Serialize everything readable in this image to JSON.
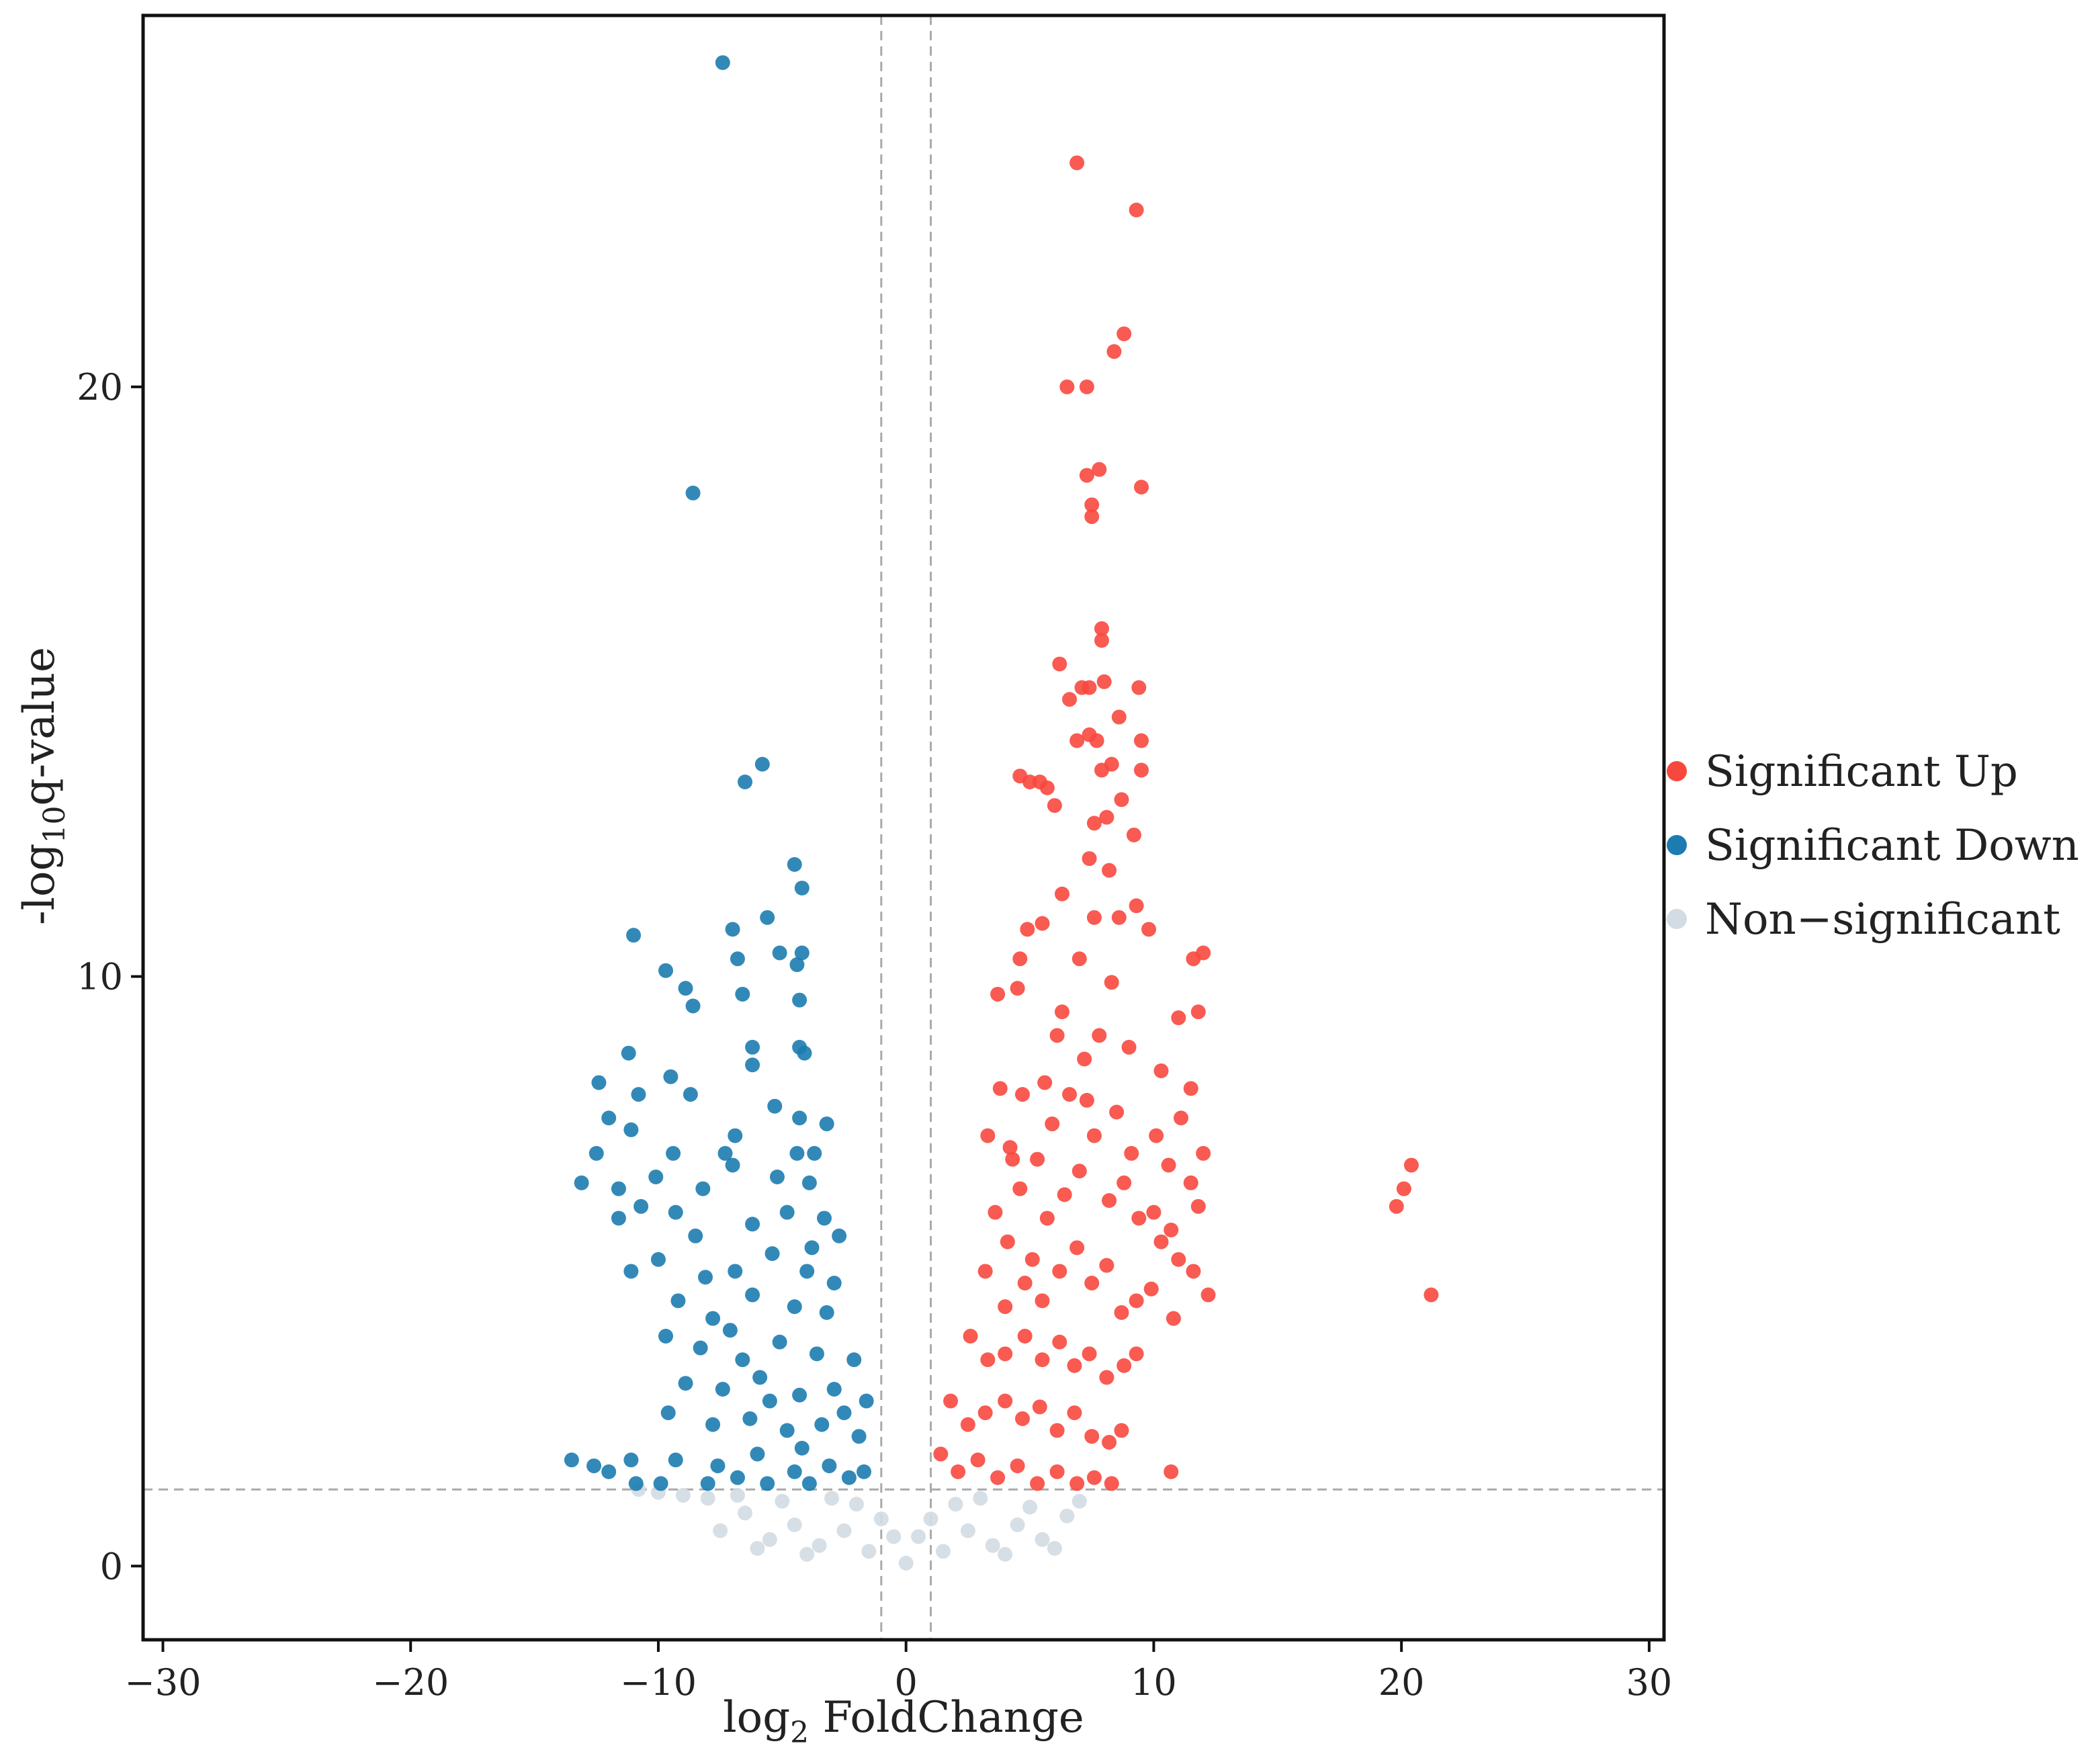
{
  "chart_data": {
    "type": "scatter",
    "title": "",
    "xlabel_main": "log",
    "xlabel_sub": "2",
    "xlabel_tail": " FoldChange",
    "ylabel_main": "-log",
    "ylabel_sub": "10",
    "ylabel_tail": "q-value",
    "xlim": [
      -30.8,
      30.6
    ],
    "ylim": [
      -1.25,
      26.3
    ],
    "x_ticks": [
      -30,
      -20,
      -10,
      0,
      10,
      20,
      30
    ],
    "x_tick_labels": [
      "−30",
      "−20",
      "−10",
      "0",
      "10",
      "20",
      "30"
    ],
    "y_ticks": [
      0,
      10,
      20
    ],
    "y_tick_labels": [
      "0",
      "10",
      "20"
    ],
    "thresholds": {
      "x": [
        -1,
        1
      ],
      "y": 1.3
    },
    "grid": false,
    "legend_position": "right",
    "series": [
      {
        "name": "Significant Up",
        "color": "#f8483e",
        "points": [
          [
            6.9,
            23.8
          ],
          [
            9.3,
            23.0
          ],
          [
            8.8,
            20.9
          ],
          [
            8.4,
            20.6
          ],
          [
            6.5,
            20.0
          ],
          [
            7.3,
            20.0
          ],
          [
            7.3,
            18.5
          ],
          [
            7.8,
            18.6
          ],
          [
            9.5,
            18.3
          ],
          [
            7.5,
            18.0
          ],
          [
            7.5,
            17.8
          ],
          [
            7.9,
            15.9
          ],
          [
            7.9,
            15.7
          ],
          [
            6.2,
            15.3
          ],
          [
            7.1,
            14.9
          ],
          [
            7.4,
            14.9
          ],
          [
            8.0,
            15.0
          ],
          [
            9.4,
            14.9
          ],
          [
            6.6,
            14.7
          ],
          [
            8.6,
            14.4
          ],
          [
            7.4,
            14.1
          ],
          [
            6.9,
            14.0
          ],
          [
            7.7,
            14.0
          ],
          [
            9.5,
            14.0
          ],
          [
            8.3,
            13.6
          ],
          [
            9.5,
            13.5
          ],
          [
            4.6,
            13.4
          ],
          [
            5.0,
            13.3
          ],
          [
            5.4,
            13.3
          ],
          [
            5.7,
            13.2
          ],
          [
            7.9,
            13.5
          ],
          [
            6.0,
            12.9
          ],
          [
            8.7,
            13.0
          ],
          [
            7.6,
            12.6
          ],
          [
            8.1,
            12.7
          ],
          [
            9.2,
            12.4
          ],
          [
            7.4,
            12.0
          ],
          [
            8.2,
            11.8
          ],
          [
            6.3,
            11.4
          ],
          [
            9.3,
            11.2
          ],
          [
            7.6,
            11.0
          ],
          [
            8.6,
            11.0
          ],
          [
            4.9,
            10.8
          ],
          [
            5.5,
            10.9
          ],
          [
            9.8,
            10.8
          ],
          [
            4.6,
            10.3
          ],
          [
            11.6,
            10.3
          ],
          [
            12.0,
            10.4
          ],
          [
            3.7,
            9.7
          ],
          [
            4.5,
            9.8
          ],
          [
            6.3,
            9.4
          ],
          [
            11.0,
            9.3
          ],
          [
            11.8,
            9.4
          ],
          [
            3.8,
            8.1
          ],
          [
            4.7,
            8.0
          ],
          [
            10.3,
            8.4
          ],
          [
            11.5,
            8.1
          ],
          [
            3.3,
            7.3
          ],
          [
            4.2,
            7.1
          ],
          [
            12.0,
            7.0
          ],
          [
            11.5,
            6.5
          ],
          [
            11.8,
            6.1
          ],
          [
            10.7,
            5.7
          ],
          [
            11.0,
            5.2
          ],
          [
            11.6,
            5.0
          ],
          [
            12.2,
            4.6
          ],
          [
            10.8,
            4.2
          ],
          [
            10.7,
            1.6
          ],
          [
            20.4,
            6.8
          ],
          [
            20.1,
            6.4
          ],
          [
            19.8,
            6.1
          ],
          [
            21.2,
            4.6
          ],
          [
            3.6,
            6.0
          ],
          [
            4.1,
            5.5
          ],
          [
            4.6,
            6.4
          ],
          [
            5.3,
            6.9
          ],
          [
            5.9,
            7.5
          ],
          [
            6.6,
            8.0
          ],
          [
            7.2,
            8.6
          ],
          [
            7.8,
            9.0
          ],
          [
            8.5,
            7.7
          ],
          [
            9.1,
            7.0
          ],
          [
            5.1,
            5.2
          ],
          [
            5.7,
            5.9
          ],
          [
            6.4,
            6.3
          ],
          [
            7.0,
            6.7
          ],
          [
            7.6,
            7.3
          ],
          [
            8.2,
            6.2
          ],
          [
            8.8,
            6.5
          ],
          [
            9.4,
            5.9
          ],
          [
            10.0,
            6.0
          ],
          [
            10.3,
            5.5
          ],
          [
            3.2,
            5.0
          ],
          [
            4.0,
            4.4
          ],
          [
            4.8,
            4.8
          ],
          [
            5.5,
            4.5
          ],
          [
            6.2,
            5.0
          ],
          [
            6.9,
            5.4
          ],
          [
            7.5,
            4.8
          ],
          [
            8.1,
            5.1
          ],
          [
            8.7,
            4.3
          ],
          [
            9.3,
            4.5
          ],
          [
            9.9,
            4.7
          ],
          [
            2.6,
            3.9
          ],
          [
            3.3,
            3.5
          ],
          [
            4.0,
            3.6
          ],
          [
            4.8,
            3.9
          ],
          [
            5.5,
            3.5
          ],
          [
            6.2,
            3.8
          ],
          [
            6.8,
            3.4
          ],
          [
            7.4,
            3.6
          ],
          [
            8.1,
            3.2
          ],
          [
            8.8,
            3.4
          ],
          [
            9.3,
            3.6
          ],
          [
            1.8,
            2.8
          ],
          [
            2.5,
            2.4
          ],
          [
            3.2,
            2.6
          ],
          [
            4.0,
            2.8
          ],
          [
            4.7,
            2.5
          ],
          [
            5.4,
            2.7
          ],
          [
            6.1,
            2.3
          ],
          [
            6.8,
            2.6
          ],
          [
            7.5,
            2.2
          ],
          [
            8.2,
            2.1
          ],
          [
            8.7,
            2.3
          ],
          [
            1.4,
            1.9
          ],
          [
            2.1,
            1.6
          ],
          [
            2.9,
            1.8
          ],
          [
            3.7,
            1.5
          ],
          [
            4.5,
            1.7
          ],
          [
            5.3,
            1.4
          ],
          [
            6.1,
            1.6
          ],
          [
            6.9,
            1.4
          ],
          [
            7.6,
            1.5
          ],
          [
            8.3,
            1.4
          ],
          [
            7.0,
            10.3
          ],
          [
            8.3,
            9.9
          ],
          [
            6.1,
            9.0
          ],
          [
            9.0,
            8.8
          ],
          [
            5.6,
            8.2
          ],
          [
            7.3,
            7.9
          ],
          [
            4.3,
            6.9
          ],
          [
            10.1,
            7.3
          ],
          [
            11.1,
            7.6
          ],
          [
            10.6,
            6.8
          ]
        ]
      },
      {
        "name": "Significant Down",
        "color": "#1c7cb0",
        "points": [
          [
            -7.4,
            25.5
          ],
          [
            -8.6,
            18.2
          ],
          [
            -6.5,
            13.3
          ],
          [
            -5.8,
            13.6
          ],
          [
            -4.5,
            11.9
          ],
          [
            -4.2,
            11.5
          ],
          [
            -5.6,
            11.0
          ],
          [
            -7.0,
            10.8
          ],
          [
            -11.0,
            10.7
          ],
          [
            -6.8,
            10.3
          ],
          [
            -5.1,
            10.4
          ],
          [
            -4.4,
            10.2
          ],
          [
            -4.2,
            10.4
          ],
          [
            -9.7,
            10.1
          ],
          [
            -8.9,
            9.8
          ],
          [
            -6.6,
            9.7
          ],
          [
            -8.6,
            9.5
          ],
          [
            -4.3,
            9.6
          ],
          [
            -11.2,
            8.7
          ],
          [
            -6.2,
            8.8
          ],
          [
            -4.3,
            8.8
          ],
          [
            -4.1,
            8.7
          ],
          [
            -12.4,
            8.2
          ],
          [
            -10.8,
            8.0
          ],
          [
            -9.5,
            8.3
          ],
          [
            -8.7,
            8.0
          ],
          [
            -6.2,
            8.5
          ],
          [
            -5.3,
            7.8
          ],
          [
            -12.0,
            7.6
          ],
          [
            -11.1,
            7.4
          ],
          [
            -6.9,
            7.3
          ],
          [
            -4.3,
            7.6
          ],
          [
            -3.2,
            7.5
          ],
          [
            -12.5,
            7.0
          ],
          [
            -9.4,
            7.0
          ],
          [
            -7.3,
            7.0
          ],
          [
            -4.4,
            7.0
          ],
          [
            -3.7,
            7.0
          ],
          [
            -13.1,
            6.5
          ],
          [
            -11.6,
            6.4
          ],
          [
            -10.1,
            6.6
          ],
          [
            -8.2,
            6.4
          ],
          [
            -7.0,
            6.8
          ],
          [
            -5.2,
            6.6
          ],
          [
            -3.9,
            6.5
          ],
          [
            -11.6,
            5.9
          ],
          [
            -10.7,
            6.1
          ],
          [
            -9.3,
            6.0
          ],
          [
            -8.5,
            5.6
          ],
          [
            -6.2,
            5.8
          ],
          [
            -4.8,
            6.0
          ],
          [
            -3.3,
            5.9
          ],
          [
            -11.1,
            5.0
          ],
          [
            -10.0,
            5.2
          ],
          [
            -8.1,
            4.9
          ],
          [
            -6.9,
            5.0
          ],
          [
            -5.4,
            5.3
          ],
          [
            -3.8,
            5.4
          ],
          [
            -2.7,
            5.6
          ],
          [
            -9.2,
            4.5
          ],
          [
            -7.8,
            4.2
          ],
          [
            -6.2,
            4.6
          ],
          [
            -4.5,
            4.4
          ],
          [
            -3.2,
            4.3
          ],
          [
            -9.7,
            3.9
          ],
          [
            -8.3,
            3.7
          ],
          [
            -6.6,
            3.5
          ],
          [
            -5.1,
            3.8
          ],
          [
            -3.6,
            3.6
          ],
          [
            -2.1,
            3.5
          ],
          [
            -8.9,
            3.1
          ],
          [
            -7.4,
            3.0
          ],
          [
            -5.9,
            3.2
          ],
          [
            -4.3,
            2.9
          ],
          [
            -2.9,
            3.0
          ],
          [
            -1.6,
            2.8
          ],
          [
            -9.6,
            2.6
          ],
          [
            -7.8,
            2.4
          ],
          [
            -6.3,
            2.5
          ],
          [
            -4.8,
            2.3
          ],
          [
            -3.4,
            2.4
          ],
          [
            -1.9,
            2.2
          ],
          [
            -9.3,
            1.8
          ],
          [
            -7.6,
            1.7
          ],
          [
            -6.0,
            1.9
          ],
          [
            -4.5,
            1.6
          ],
          [
            -3.1,
            1.7
          ],
          [
            -1.7,
            1.6
          ],
          [
            -13.5,
            1.8
          ],
          [
            -12.6,
            1.7
          ],
          [
            -11.1,
            1.8
          ],
          [
            -10.9,
            1.4
          ],
          [
            -9.9,
            1.4
          ],
          [
            -8.0,
            1.4
          ],
          [
            -5.6,
            1.4
          ],
          [
            -3.9,
            1.4
          ],
          [
            -2.3,
            1.5
          ],
          [
            -12.0,
            1.6
          ],
          [
            -6.8,
            1.5
          ],
          [
            -4.2,
            2.0
          ],
          [
            -2.5,
            2.6
          ],
          [
            -5.5,
            2.8
          ],
          [
            -7.1,
            4.0
          ],
          [
            -4.0,
            5.0
          ],
          [
            -2.9,
            4.8
          ]
        ]
      },
      {
        "name": "Non−significant",
        "color": "#d2dce2",
        "points": [
          [
            0,
            0.05
          ],
          [
            -0.5,
            0.5
          ],
          [
            0.5,
            0.5
          ],
          [
            -1.0,
            0.8
          ],
          [
            1.0,
            0.8
          ],
          [
            -1.5,
            0.25
          ],
          [
            1.5,
            0.25
          ],
          [
            -2.5,
            0.6
          ],
          [
            2.5,
            0.6
          ],
          [
            -3.5,
            0.35
          ],
          [
            3.5,
            0.35
          ],
          [
            -4.5,
            0.7
          ],
          [
            4.5,
            0.7
          ],
          [
            -5.5,
            0.45
          ],
          [
            5.5,
            0.45
          ],
          [
            -6.5,
            0.9
          ],
          [
            6.5,
            0.85
          ],
          [
            -2.0,
            1.05
          ],
          [
            2.0,
            1.05
          ],
          [
            -3.0,
            1.15
          ],
          [
            3.0,
            1.15
          ],
          [
            -5.0,
            1.1
          ],
          [
            5.0,
            1.0
          ],
          [
            -6.8,
            1.2
          ],
          [
            7.0,
            1.1
          ],
          [
            -8.0,
            1.15
          ],
          [
            -9.0,
            1.2
          ],
          [
            -10.0,
            1.25
          ],
          [
            -10.8,
            1.3
          ],
          [
            -4.0,
            0.2
          ],
          [
            4.0,
            0.2
          ],
          [
            -7.5,
            0.6
          ],
          [
            -6.0,
            0.3
          ],
          [
            6.0,
            0.3
          ]
        ]
      }
    ]
  }
}
